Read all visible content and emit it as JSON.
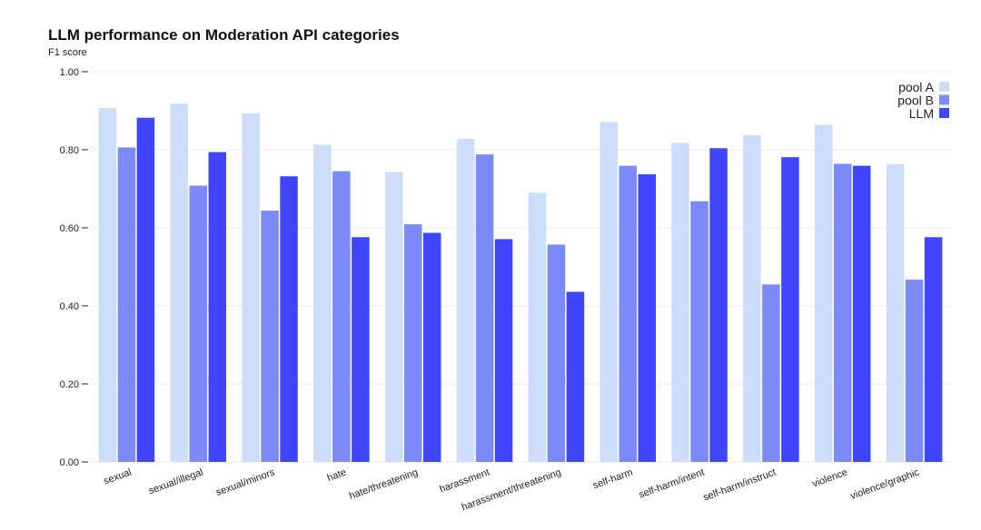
{
  "chart_data": {
    "type": "bar",
    "title": "LLM performance on Moderation API categories",
    "ylabel": "F1 score",
    "ylim": [
      0,
      1.0
    ],
    "yticks": [
      "0.00",
      "0.20",
      "0.40",
      "0.60",
      "0.80",
      "1.00"
    ],
    "grid": true,
    "legend_position": "top-right",
    "categories": [
      "sexual",
      "sexual/illegal",
      "sexual/minors",
      "hate",
      "hate/threatening",
      "harassment",
      "harassment/threatening",
      "self-harm",
      "self-harm/intent",
      "self-harm/instruct",
      "violence",
      "violence/graphic"
    ],
    "series": [
      {
        "name": "pool A",
        "color": "#cddcfa",
        "values": [
          0.907,
          0.918,
          0.893,
          0.813,
          0.743,
          0.828,
          0.69,
          0.871,
          0.817,
          0.837,
          0.864,
          0.763
        ]
      },
      {
        "name": "pool B",
        "color": "#7b89f9",
        "values": [
          0.806,
          0.708,
          0.644,
          0.745,
          0.609,
          0.788,
          0.557,
          0.759,
          0.668,
          0.455,
          0.764,
          0.467
        ]
      },
      {
        "name": "LLM",
        "color": "#3f45fb",
        "values": [
          0.882,
          0.794,
          0.732,
          0.576,
          0.587,
          0.571,
          0.436,
          0.737,
          0.804,
          0.781,
          0.759,
          0.576
        ]
      }
    ]
  }
}
